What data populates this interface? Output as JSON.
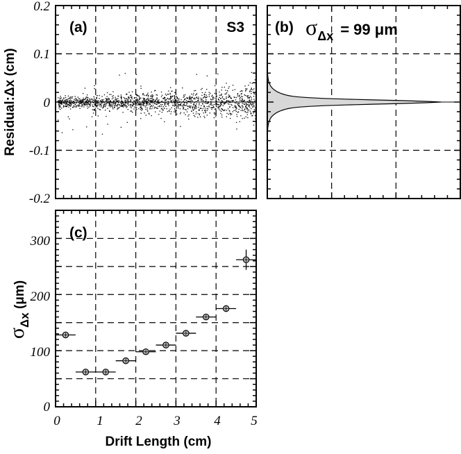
{
  "chart_data": [
    {
      "panel": "(a)",
      "type": "scatter",
      "station_label": "S3",
      "xlim": [
        0,
        5
      ],
      "ylim": [
        -0.2,
        0.2
      ],
      "ylabel": "Residual:Δx (cm)",
      "yticks": [
        "0.2",
        "0.1",
        "0",
        "-0.1",
        "-0.2"
      ],
      "grid": true,
      "description_points": "dense cloud of residuals centered near 0, spread roughly ±0.03 cm at short drift, widening toward 5 cm"
    },
    {
      "panel": "(b)",
      "type": "area",
      "orientation": "horizontal-histogram",
      "sigma_symbol": "σ",
      "sigma_sub": "Δx",
      "sigma_text": "= 99 μm",
      "ylim": [
        -0.2,
        0.2
      ],
      "grid": true
    },
    {
      "panel": "(c)",
      "type": "scatter",
      "xlabel": "Drift Length (cm)",
      "ylabel_symbol": "σ",
      "ylabel_sub": "Δx",
      "ylabel_unit": " (μm)",
      "xlim": [
        0,
        5
      ],
      "ylim": [
        0,
        350
      ],
      "xticks": [
        "0",
        "1",
        "2",
        "3",
        "4",
        "5"
      ],
      "yticks": [
        "300",
        "200",
        "100",
        "0"
      ],
      "grid": true,
      "points": [
        {
          "x": 0.25,
          "y": 128,
          "yerr": 2
        },
        {
          "x": 0.75,
          "y": 62,
          "yerr": 2
        },
        {
          "x": 1.25,
          "y": 62,
          "yerr": 2
        },
        {
          "x": 1.75,
          "y": 82,
          "yerr": 2
        },
        {
          "x": 2.25,
          "y": 98,
          "yerr": 2
        },
        {
          "x": 2.75,
          "y": 110,
          "yerr": 2
        },
        {
          "x": 3.25,
          "y": 131,
          "yerr": 3
        },
        {
          "x": 3.75,
          "y": 160,
          "yerr": 4
        },
        {
          "x": 4.25,
          "y": 175,
          "yerr": 6
        },
        {
          "x": 4.75,
          "y": 262,
          "yerr": 18
        }
      ],
      "xerr": 0.25
    }
  ]
}
